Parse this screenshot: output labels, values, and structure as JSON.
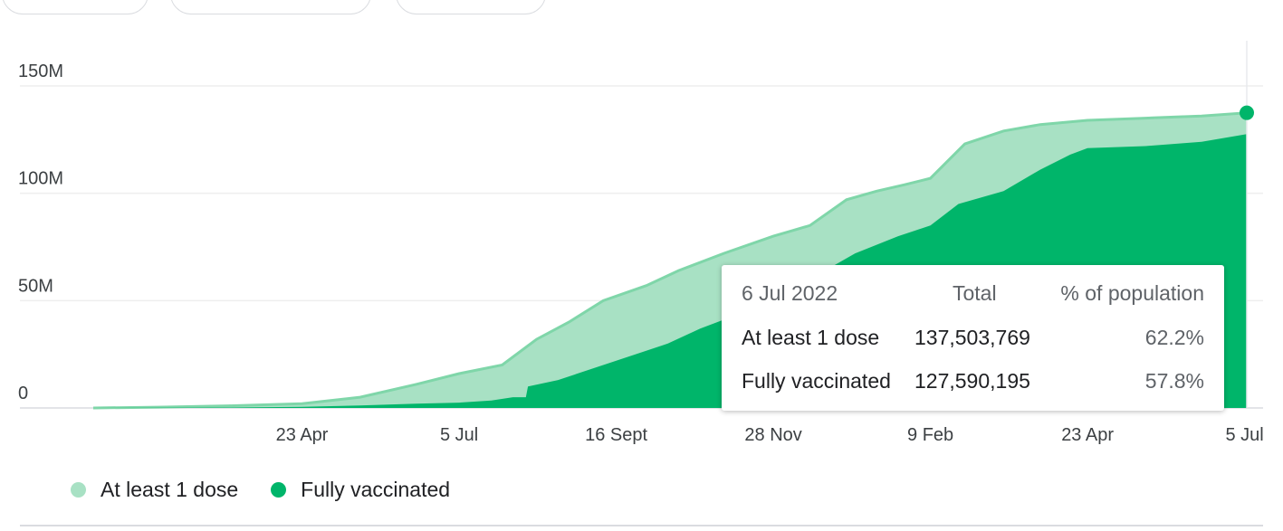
{
  "colors": {
    "first_dose": "#a8e1c4",
    "first_dose_line": "#7fd6a9",
    "fully": "#00b56a",
    "grid": "#eeeeee"
  },
  "chart_data": {
    "type": "area",
    "title": "",
    "xlabel": "",
    "ylabel": "",
    "ylim": [
      0,
      160000000
    ],
    "y_ticks": [
      0,
      50000000,
      100000000,
      150000000
    ],
    "y_tick_labels": [
      "0",
      "50M",
      "100M",
      "150M"
    ],
    "x_start": "2021-01-16",
    "x_end": "2022-07-06",
    "x_ticks": [
      {
        "label": "23 Apr",
        "date": "2021-04-23"
      },
      {
        "label": "5 Jul",
        "date": "2021-07-05"
      },
      {
        "label": "16 Sept",
        "date": "2021-09-16"
      },
      {
        "label": "28 Nov",
        "date": "2021-11-28"
      },
      {
        "label": "9 Feb",
        "date": "2022-02-09"
      },
      {
        "label": "23 Apr",
        "date": "2022-04-23"
      },
      {
        "label": "5 Jul",
        "date": "2022-07-05"
      }
    ],
    "grid": true,
    "legend_position": "bottom-left",
    "series": [
      {
        "name": "At least 1 dose",
        "points": [
          [
            "2021-01-16",
            0
          ],
          [
            "2021-02-15",
            400000
          ],
          [
            "2021-03-20",
            1000000
          ],
          [
            "2021-04-23",
            2000000
          ],
          [
            "2021-05-20",
            5000000
          ],
          [
            "2021-06-15",
            11000000
          ],
          [
            "2021-07-05",
            16000000
          ],
          [
            "2021-07-25",
            20000000
          ],
          [
            "2021-08-10",
            32000000
          ],
          [
            "2021-08-25",
            40000000
          ],
          [
            "2021-09-10",
            50000000
          ],
          [
            "2021-09-30",
            57000000
          ],
          [
            "2021-10-15",
            64000000
          ],
          [
            "2021-11-05",
            72000000
          ],
          [
            "2021-11-28",
            80000000
          ],
          [
            "2021-12-15",
            85000000
          ],
          [
            "2022-01-01",
            97000000
          ],
          [
            "2022-01-15",
            101000000
          ],
          [
            "2022-01-28",
            104000000
          ],
          [
            "2022-02-09",
            107000000
          ],
          [
            "2022-02-25",
            123000000
          ],
          [
            "2022-03-15",
            129000000
          ],
          [
            "2022-04-01",
            132000000
          ],
          [
            "2022-04-23",
            134000000
          ],
          [
            "2022-05-20",
            135000000
          ],
          [
            "2022-06-15",
            136000000
          ],
          [
            "2022-07-06",
            137503769
          ]
        ]
      },
      {
        "name": "Fully vaccinated",
        "points": [
          [
            "2021-01-16",
            0
          ],
          [
            "2021-03-20",
            200000
          ],
          [
            "2021-04-23",
            500000
          ],
          [
            "2021-05-20",
            1200000
          ],
          [
            "2021-06-15",
            2000000
          ],
          [
            "2021-07-05",
            2500000
          ],
          [
            "2021-07-20",
            3500000
          ],
          [
            "2021-07-30",
            5000000
          ],
          [
            "2021-08-05",
            5000000
          ],
          [
            "2021-08-06",
            10000000
          ],
          [
            "2021-08-20",
            13000000
          ],
          [
            "2021-09-16",
            22000000
          ],
          [
            "2021-10-10",
            30000000
          ],
          [
            "2021-10-25",
            37000000
          ],
          [
            "2021-11-10",
            43000000
          ],
          [
            "2021-11-28",
            50000000
          ],
          [
            "2021-12-15",
            60000000
          ],
          [
            "2022-01-05",
            72000000
          ],
          [
            "2022-01-25",
            80000000
          ],
          [
            "2022-02-09",
            85000000
          ],
          [
            "2022-02-22",
            95000000
          ],
          [
            "2022-03-15",
            101000000
          ],
          [
            "2022-04-01",
            111000000
          ],
          [
            "2022-04-15",
            118000000
          ],
          [
            "2022-04-23",
            121000000
          ],
          [
            "2022-05-20",
            122000000
          ],
          [
            "2022-06-15",
            124000000
          ],
          [
            "2022-07-06",
            127590195
          ]
        ]
      }
    ]
  },
  "tooltip": {
    "date": "6 Jul 2022",
    "col_total": "Total",
    "col_pct": "% of population",
    "rows": [
      {
        "label": "At least 1 dose",
        "total": "137,503,769",
        "pct": "62.2%"
      },
      {
        "label": "Fully vaccinated",
        "total": "127,590,195",
        "pct": "57.8%"
      }
    ]
  },
  "legend": [
    {
      "label": "At least 1 dose"
    },
    {
      "label": "Fully vaccinated"
    }
  ]
}
